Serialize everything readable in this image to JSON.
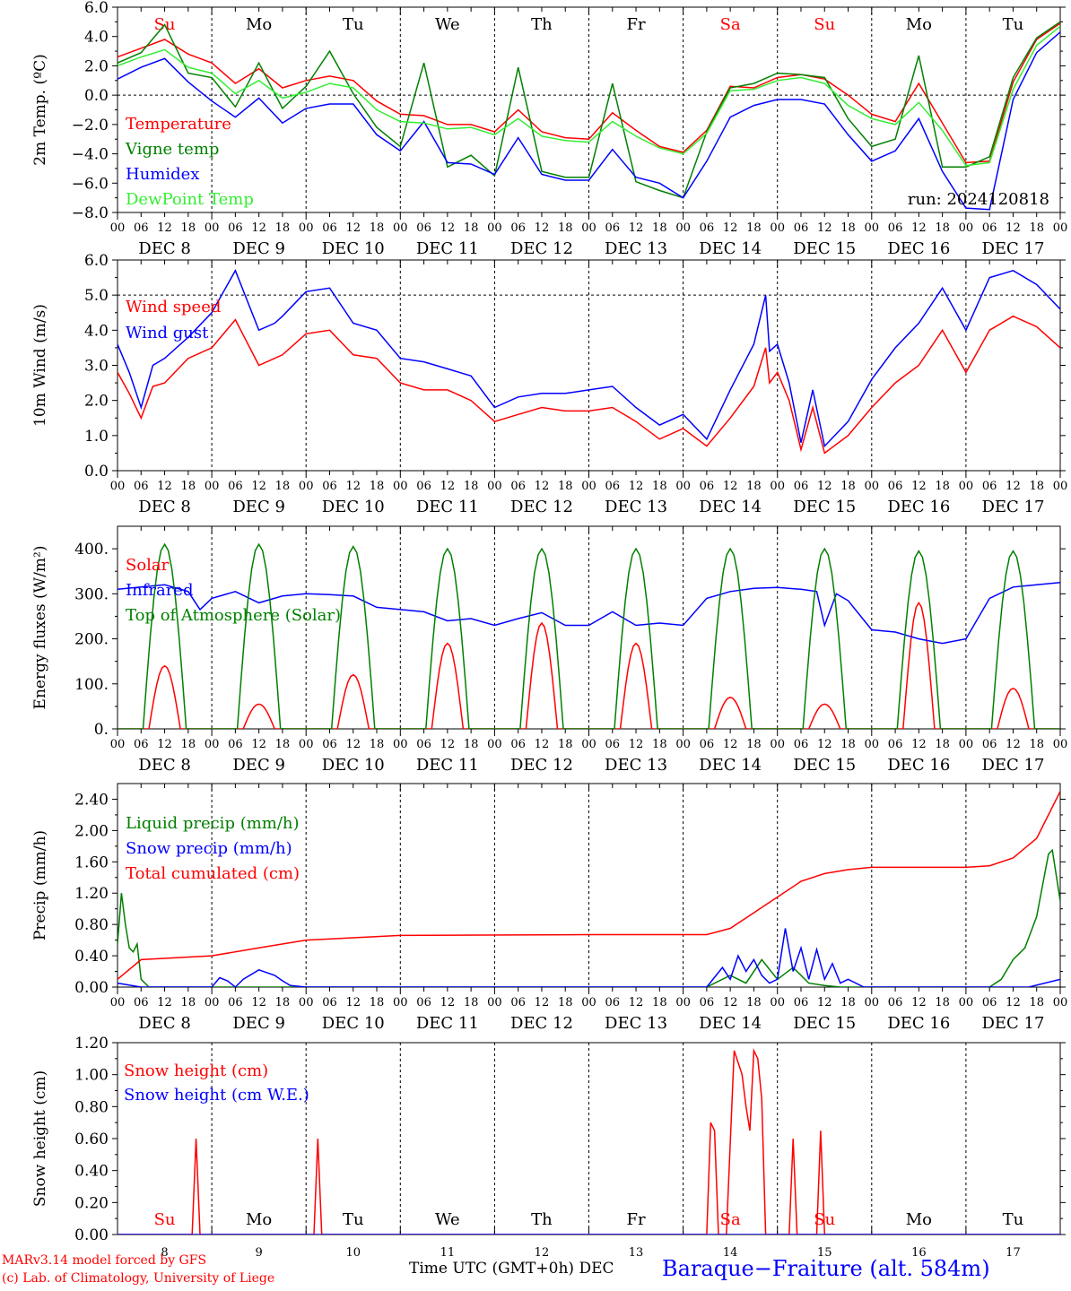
{
  "footer": {
    "credit1": "MARv3.14 model forced by GFS",
    "credit2": "(c) Lab. of Climatology, University of Liege",
    "xlabel": "Time UTC (GMT+0h)",
    "xunit": "DEC",
    "station": "Baraque−Fraiture (alt. 584m)"
  },
  "colors": {
    "red": "#ff0000",
    "green": "#008000",
    "blue": "#0000ff",
    "lightgreen": "#33ee33",
    "text": "#000000"
  },
  "days": {
    "weekdays": [
      "Su",
      "Mo",
      "Tu",
      "We",
      "Th",
      "Fr",
      "Sa",
      "Su",
      "Mo",
      "Tu"
    ],
    "weekend_index": [
      0,
      6,
      7
    ],
    "dates": [
      "DEC  8",
      "DEC  9",
      "DEC 10",
      "DEC 11",
      "DEC 12",
      "DEC 13",
      "DEC 14",
      "DEC 15",
      "DEC 16",
      "DEC 17"
    ],
    "day_numbers": [
      "8",
      "9",
      "10",
      "11",
      "12",
      "13",
      "14",
      "15",
      "16",
      "17"
    ],
    "hour_ticks": [
      "00",
      "06",
      "12",
      "18"
    ],
    "end_tick": "00"
  },
  "chart_data": [
    {
      "type": "line",
      "ylabel": "2m Temp. (ºC)",
      "ylim": [
        -8,
        6
      ],
      "yticks": [
        "6.0",
        "4.0",
        "2.0",
        "0.0",
        "−2.0",
        "−4.0",
        "−6.0",
        "−8.0"
      ],
      "ytick_values": [
        6,
        4,
        2,
        0,
        -2,
        -4,
        -6,
        -8
      ],
      "ref_lines": [
        0
      ],
      "annotation": "run: 2024120818",
      "x_unit": "hours since DEC 8 00 UTC",
      "series": [
        {
          "name": "Temperature",
          "color": "#ff0000",
          "x": [
            0,
            6,
            12,
            18,
            24,
            30,
            36,
            42,
            48,
            54,
            60,
            66,
            72,
            78,
            84,
            90,
            96,
            102,
            108,
            114,
            120,
            126,
            132,
            138,
            144,
            150,
            156,
            162,
            168,
            174,
            180,
            186,
            192,
            198,
            204,
            210,
            216,
            222,
            228,
            234,
            240
          ],
          "y": [
            2.6,
            3.2,
            3.8,
            2.8,
            2.2,
            0.8,
            1.8,
            0.5,
            1.0,
            1.3,
            1.0,
            -0.4,
            -1.3,
            -1.4,
            -2.0,
            -2.0,
            -2.5,
            -1.0,
            -2.5,
            -2.9,
            -3.0,
            -1.2,
            -2.4,
            -3.5,
            -3.9,
            -2.4,
            0.6,
            0.5,
            1.2,
            1.4,
            1.1,
            0.0,
            -1.3,
            -1.8,
            0.8,
            -1.9,
            -4.6,
            -4.5,
            0.9,
            3.8,
            4.9
          ]
        },
        {
          "name": "Vigne temp",
          "color": "#008000",
          "x": [
            0,
            6,
            12,
            18,
            24,
            30,
            36,
            42,
            48,
            54,
            60,
            66,
            72,
            78,
            84,
            90,
            96,
            102,
            108,
            114,
            120,
            126,
            132,
            138,
            144,
            150,
            156,
            162,
            168,
            174,
            180,
            186,
            192,
            198,
            204,
            210,
            216,
            222,
            228,
            234,
            240
          ],
          "y": [
            2.2,
            2.9,
            4.8,
            1.5,
            1.2,
            -0.8,
            2.2,
            -0.9,
            0.6,
            3.0,
            0.1,
            -2.2,
            -3.5,
            2.2,
            -4.9,
            -4.1,
            -5.5,
            1.9,
            -5.2,
            -5.6,
            -5.6,
            0.8,
            -5.9,
            -6.5,
            -7.0,
            -2.5,
            0.5,
            0.8,
            1.5,
            1.4,
            1.2,
            -1.6,
            -3.5,
            -3.0,
            2.7,
            -4.9,
            -4.9,
            -4.2,
            1.2,
            3.9,
            5.0
          ]
        },
        {
          "name": "Humidex",
          "color": "#0000ff",
          "x": [
            0,
            6,
            12,
            18,
            24,
            30,
            36,
            42,
            48,
            54,
            60,
            66,
            72,
            78,
            84,
            90,
            96,
            102,
            108,
            114,
            120,
            126,
            132,
            138,
            144,
            150,
            156,
            162,
            168,
            174,
            180,
            186,
            192,
            198,
            204,
            210,
            216,
            222,
            228,
            234,
            240
          ],
          "y": [
            1.1,
            1.9,
            2.5,
            0.9,
            -0.4,
            -1.5,
            -0.2,
            -1.9,
            -0.9,
            -0.6,
            -0.6,
            -2.7,
            -3.8,
            -1.8,
            -4.6,
            -4.7,
            -5.4,
            -2.9,
            -5.4,
            -5.8,
            -5.8,
            -3.7,
            -5.6,
            -6.0,
            -7.0,
            -4.5,
            -1.5,
            -0.7,
            -0.3,
            -0.3,
            -0.6,
            -2.7,
            -4.5,
            -3.8,
            -1.6,
            -5.2,
            -7.7,
            -7.8,
            -0.3,
            2.9,
            4.3
          ]
        },
        {
          "name": "DewPoint Temp",
          "color": "#33ee33",
          "x": [
            0,
            6,
            12,
            18,
            24,
            30,
            36,
            42,
            48,
            54,
            60,
            66,
            72,
            78,
            84,
            90,
            96,
            102,
            108,
            114,
            120,
            126,
            132,
            138,
            144,
            150,
            156,
            162,
            168,
            174,
            180,
            186,
            192,
            198,
            204,
            210,
            216,
            222,
            228,
            234,
            240
          ],
          "y": [
            2.0,
            2.6,
            3.1,
            1.9,
            1.5,
            0.1,
            1.0,
            -0.2,
            0.2,
            0.8,
            0.5,
            -1.0,
            -1.8,
            -1.9,
            -2.3,
            -2.2,
            -2.7,
            -1.6,
            -2.8,
            -3.1,
            -3.2,
            -1.8,
            -2.8,
            -3.6,
            -4.0,
            -2.6,
            0.3,
            0.4,
            1.0,
            1.2,
            0.8,
            -0.7,
            -1.6,
            -2.0,
            -0.5,
            -2.4,
            -4.8,
            -4.6,
            0.4,
            3.4,
            4.7
          ]
        }
      ]
    },
    {
      "type": "line",
      "ylabel": "10m Wind (m/s)",
      "ylim": [
        0,
        6
      ],
      "yticks": [
        "6.0",
        "5.0",
        "4.0",
        "3.0",
        "2.0",
        "1.0",
        "0.0"
      ],
      "ytick_values": [
        6,
        5,
        4,
        3,
        2,
        1,
        0
      ],
      "ref_lines": [
        5
      ],
      "x_unit": "hours since DEC 8 00 UTC",
      "series": [
        {
          "name": "Wind speed",
          "color": "#ff0000",
          "x": [
            0,
            3,
            6,
            9,
            12,
            18,
            24,
            30,
            36,
            40,
            42,
            48,
            54,
            60,
            66,
            72,
            78,
            84,
            90,
            96,
            102,
            108,
            114,
            120,
            126,
            132,
            138,
            144,
            150,
            156,
            162,
            165,
            166,
            168,
            171,
            174,
            177,
            180,
            186,
            192,
            198,
            204,
            210,
            216,
            222,
            228,
            234,
            240
          ],
          "y": [
            2.8,
            2.2,
            1.5,
            2.4,
            2.5,
            3.2,
            3.5,
            4.3,
            3.0,
            3.2,
            3.3,
            3.9,
            4.0,
            3.3,
            3.2,
            2.5,
            2.3,
            2.3,
            2.0,
            1.4,
            1.6,
            1.8,
            1.7,
            1.7,
            1.8,
            1.4,
            0.9,
            1.2,
            0.7,
            1.5,
            2.4,
            3.5,
            2.5,
            2.8,
            2.0,
            0.6,
            1.8,
            0.5,
            1.0,
            1.8,
            2.5,
            3.0,
            4.0,
            2.8,
            4.0,
            4.4,
            4.1,
            3.5
          ]
        },
        {
          "name": "Wind gust",
          "color": "#0000ff",
          "x": [
            0,
            3,
            6,
            9,
            12,
            18,
            24,
            30,
            36,
            40,
            42,
            48,
            54,
            60,
            66,
            72,
            78,
            84,
            90,
            96,
            102,
            108,
            114,
            120,
            126,
            132,
            138,
            144,
            150,
            156,
            162,
            165,
            166,
            168,
            171,
            174,
            177,
            180,
            186,
            192,
            198,
            204,
            210,
            216,
            222,
            228,
            234,
            240
          ],
          "y": [
            3.6,
            2.8,
            1.8,
            3.0,
            3.2,
            3.8,
            4.5,
            5.7,
            4.0,
            4.2,
            4.4,
            5.1,
            5.2,
            4.2,
            4.0,
            3.2,
            3.1,
            2.9,
            2.7,
            1.8,
            2.1,
            2.2,
            2.2,
            2.3,
            2.4,
            1.8,
            1.3,
            1.6,
            0.9,
            2.3,
            3.6,
            5.0,
            3.4,
            3.6,
            2.5,
            0.8,
            2.3,
            0.7,
            1.4,
            2.6,
            3.5,
            4.2,
            5.2,
            4.0,
            5.5,
            5.7,
            5.3,
            4.6
          ]
        }
      ]
    },
    {
      "type": "line",
      "ylabel": "Energy fluxes (W/m²)",
      "ylim": [
        0,
        450
      ],
      "yticks": [
        "400.",
        "300.",
        "200.",
        "100.",
        "0."
      ],
      "ytick_values": [
        400,
        300,
        200,
        100,
        0
      ],
      "x_unit": "hours since DEC 8 00 UTC",
      "daily_peaks": {
        "Top of Atmosphere (Solar)": [
          410,
          410,
          405,
          400,
          400,
          400,
          400,
          400,
          395,
          395
        ],
        "Solar": [
          140,
          55,
          120,
          190,
          235,
          190,
          70,
          55,
          280,
          90
        ]
      },
      "series": [
        {
          "name": "Solar",
          "color": "#ff0000",
          "derived_from": "daily_peaks"
        },
        {
          "name": "Infrared",
          "color": "#0000ff",
          "x": [
            0,
            6,
            12,
            18,
            21,
            24,
            30,
            36,
            42,
            48,
            54,
            60,
            66,
            72,
            78,
            84,
            90,
            96,
            102,
            108,
            114,
            120,
            126,
            132,
            138,
            144,
            150,
            156,
            162,
            168,
            174,
            178,
            180,
            183,
            186,
            192,
            198,
            204,
            210,
            216,
            222,
            228,
            234,
            240
          ],
          "y": [
            310,
            315,
            320,
            305,
            265,
            290,
            305,
            280,
            295,
            300,
            298,
            295,
            270,
            265,
            260,
            240,
            245,
            230,
            245,
            258,
            230,
            230,
            260,
            230,
            235,
            230,
            290,
            305,
            312,
            314,
            310,
            305,
            230,
            300,
            285,
            220,
            215,
            200,
            190,
            200,
            290,
            315,
            320,
            325
          ]
        },
        {
          "name": "Top of Atmosphere (Solar)",
          "color": "#008000",
          "derived_from": "daily_peaks"
        }
      ]
    },
    {
      "type": "line",
      "ylabel": "Precip (mm/h)",
      "ylim": [
        0,
        2.6
      ],
      "yticks": [
        "2.40",
        "2.00",
        "1.60",
        "1.20",
        "0.80",
        "0.40",
        "0.00"
      ],
      "ytick_values": [
        2.4,
        2.0,
        1.6,
        1.2,
        0.8,
        0.4,
        0.0
      ],
      "x_unit": "hours since DEC 8 00 UTC",
      "series": [
        {
          "name": "Liquid precip (mm/h)",
          "color": "#008000",
          "x": [
            0,
            1,
            2,
            3,
            4,
            5,
            6,
            8,
            10,
            24,
            60,
            150,
            156,
            160,
            164,
            168,
            172,
            176,
            180,
            184,
            210,
            222,
            225,
            228,
            231,
            234,
            237,
            238,
            240
          ],
          "y": [
            0.55,
            1.2,
            0.8,
            0.5,
            0.45,
            0.55,
            0.1,
            0.0,
            0.0,
            0.0,
            0.0,
            0.0,
            0.15,
            0.05,
            0.35,
            0.1,
            0.25,
            0.05,
            0.02,
            0.0,
            0.0,
            0.0,
            0.1,
            0.35,
            0.5,
            0.9,
            1.7,
            1.75,
            1.1
          ]
        },
        {
          "name": "Snow precip (mm/h)",
          "color": "#0000ff",
          "x": [
            0,
            6,
            24,
            26,
            28,
            30,
            32,
            36,
            40,
            42,
            44,
            48,
            60,
            150,
            154,
            156,
            158,
            160,
            162,
            164,
            166,
            168,
            170,
            172,
            174,
            176,
            178,
            180,
            182,
            184,
            186,
            190,
            232,
            240
          ],
          "y": [
            0.05,
            0.0,
            0.0,
            0.12,
            0.08,
            0.0,
            0.1,
            0.22,
            0.15,
            0.08,
            0.02,
            0.0,
            0.0,
            0.0,
            0.25,
            0.1,
            0.4,
            0.2,
            0.35,
            0.15,
            0.05,
            0.1,
            0.75,
            0.2,
            0.5,
            0.1,
            0.48,
            0.1,
            0.3,
            0.05,
            0.1,
            0.0,
            0.0,
            0.1
          ]
        },
        {
          "name": "Total cumulated (cm)",
          "color": "#ff0000",
          "x": [
            0,
            6,
            24,
            36,
            48,
            72,
            120,
            144,
            150,
            156,
            162,
            168,
            174,
            180,
            186,
            192,
            216,
            222,
            228,
            234,
            240
          ],
          "y": [
            0.1,
            0.35,
            0.4,
            0.5,
            0.6,
            0.66,
            0.67,
            0.67,
            0.67,
            0.75,
            0.95,
            1.15,
            1.35,
            1.45,
            1.5,
            1.53,
            1.53,
            1.55,
            1.65,
            1.9,
            2.5
          ]
        }
      ]
    },
    {
      "type": "line",
      "ylabel": "Snow height (cm)",
      "ylim": [
        0,
        1.2
      ],
      "yticks": [
        "1.20",
        "1.00",
        "0.80",
        "0.60",
        "0.40",
        "0.20",
        "0.00"
      ],
      "ytick_values": [
        1.2,
        1.0,
        0.8,
        0.6,
        0.4,
        0.2,
        0.0
      ],
      "x_unit": "hours since DEC 8 00 UTC",
      "series": [
        {
          "name": "Snow height (cm)",
          "color": "#ff0000",
          "x": [
            0,
            19,
            20,
            21,
            50,
            51,
            52,
            150,
            151,
            152,
            153,
            155,
            157,
            159,
            160,
            161,
            162,
            163,
            164,
            165,
            171,
            172,
            173,
            178,
            179,
            180,
            240
          ],
          "y": [
            0,
            0,
            0.6,
            0,
            0,
            0.6,
            0,
            0,
            0.7,
            0.65,
            0,
            0,
            1.15,
            1.0,
            0.8,
            0.65,
            1.15,
            1.1,
            0.85,
            0,
            0,
            0.6,
            0,
            0,
            0.65,
            0,
            0
          ]
        },
        {
          "name": "Snow height (cm W.E.)",
          "color": "#0000ff",
          "x": [
            0,
            240
          ],
          "y": [
            0,
            0
          ]
        }
      ]
    }
  ]
}
